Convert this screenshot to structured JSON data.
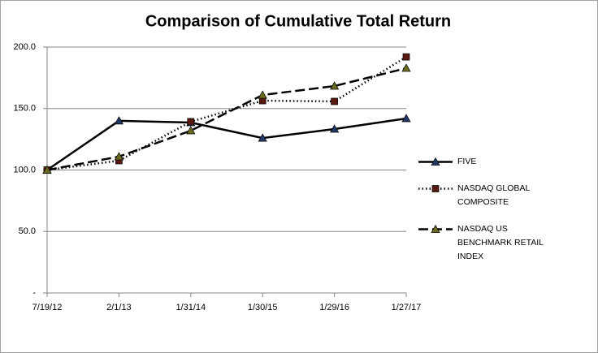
{
  "chart_data": {
    "type": "line",
    "title": "Comparison of Cumulative Total Return",
    "categories": [
      "7/19/12",
      "2/1/13",
      "1/31/14",
      "1/30/15",
      "1/29/16",
      "1/27/17"
    ],
    "series": [
      {
        "name": "FIVE",
        "color": "#000000",
        "marker_color": "#1f3864",
        "marker": "triangle",
        "dash": "solid",
        "values": [
          100,
          140,
          138.6,
          126,
          133.3,
          141.9
        ]
      },
      {
        "name": "NASDAQ GLOBAL COMPOSITE",
        "color": "#000000",
        "marker_color": "#5a1a12",
        "marker": "square",
        "dash": "dotted",
        "values": [
          100,
          107.6,
          139.3,
          156.4,
          155.8,
          192
        ]
      },
      {
        "name": "NASDAQ US BENCHMARK RETAIL INDEX",
        "color": "#000000",
        "marker_color": "#6b6b1f",
        "marker": "triangle",
        "dash": "dashed",
        "values": [
          100,
          110.9,
          132,
          161,
          168.3,
          182.8
        ]
      }
    ],
    "ylim": [
      0,
      200
    ],
    "yticks": [
      {
        "value": 0,
        "label": "-"
      },
      {
        "value": 50,
        "label": "50.0"
      },
      {
        "value": 100,
        "label": "100.0"
      },
      {
        "value": 150,
        "label": "150.0"
      },
      {
        "value": 200,
        "label": "200.0"
      }
    ],
    "grid": true,
    "legend": "right"
  }
}
